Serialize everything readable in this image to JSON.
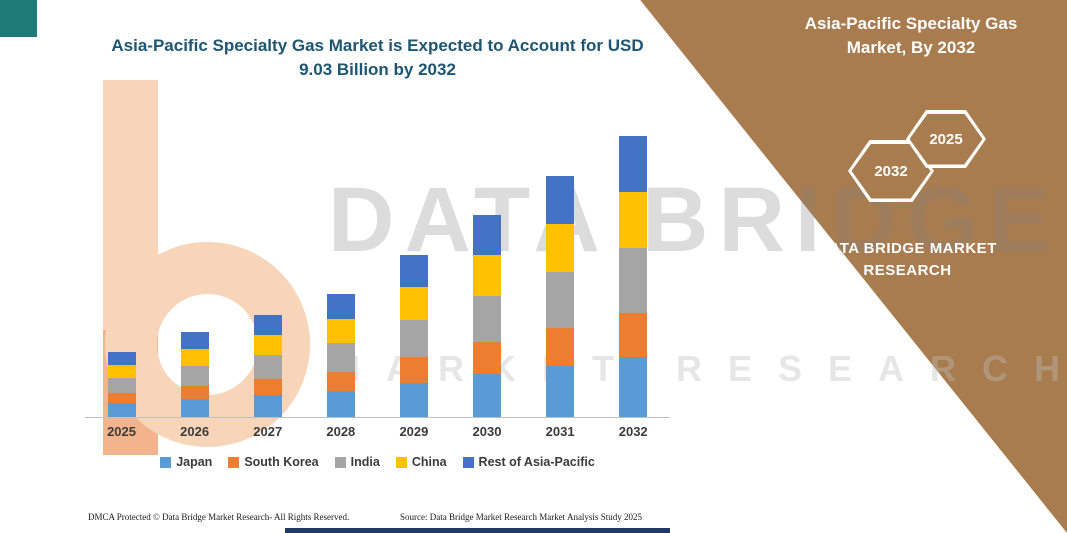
{
  "accents": {
    "title_color": "#1D5573",
    "corner_color": "#1E7C78",
    "bottom_bar_color": "#1F3864"
  },
  "watermark": {
    "line1": "DATA BRIDGE",
    "line2": "MARKET RESEARCH"
  },
  "side_panel": {
    "bg_color": "#A97C50",
    "title": "Asia-Pacific Specialty Gas Market, By 2032",
    "hexagons": [
      "2032",
      "2025"
    ],
    "brand": "DATA BRIDGE MARKET RESEARCH"
  },
  "footer": {
    "dmca": "DMCA Protected © Data Bridge Market Research-  All Rights Reserved.",
    "source": "Source: Data Bridge Market Research  Market Analysis Study 2025"
  },
  "chart_data": {
    "type": "bar",
    "stacked": true,
    "title": "Asia-Pacific Specialty Gas Market is Expected to Account for USD 9.03 Billion by 2032",
    "unit": "USD Billion",
    "categories": [
      "2025",
      "2026",
      "2027",
      "2028",
      "2029",
      "2030",
      "2031",
      "2032"
    ],
    "series": [
      {
        "name": "Japan",
        "color": "#5B9BD5",
        "values": [
          0.45,
          0.58,
          0.7,
          0.84,
          1.11,
          1.38,
          1.65,
          1.92
        ]
      },
      {
        "name": "South Korea",
        "color": "#ED7D31",
        "values": [
          0.33,
          0.43,
          0.52,
          0.62,
          0.82,
          1.02,
          1.22,
          1.42
        ]
      },
      {
        "name": "India",
        "color": "#A5A5A5",
        "values": [
          0.48,
          0.63,
          0.76,
          0.91,
          1.2,
          1.5,
          1.79,
          2.09
        ]
      },
      {
        "name": "China",
        "color": "#FFC000",
        "values": [
          0.42,
          0.55,
          0.66,
          0.79,
          1.04,
          1.3,
          1.55,
          1.81
        ]
      },
      {
        "name": "Rest of Asia-Pacific",
        "color": "#4472C4",
        "values": [
          0.41,
          0.54,
          0.65,
          0.78,
          1.03,
          1.28,
          1.53,
          1.79
        ]
      }
    ],
    "totals_note": "2032 total = 9.03",
    "ylim": [
      0,
      9.5
    ],
    "grid": false,
    "legend_position": "bottom"
  }
}
